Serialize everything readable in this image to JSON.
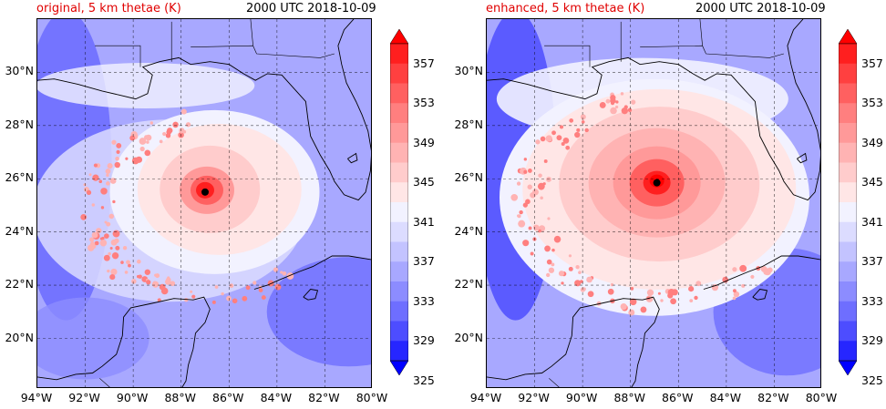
{
  "panels": [
    {
      "title": "original, 5 km thetae (K)",
      "time": "2000 UTC 2018-10-09",
      "center_marker": {
        "lon": -87.0,
        "lat": 25.5
      }
    },
    {
      "title": "enhanced, 5 km thetae (K)",
      "time": "2000 UTC 2018-10-09",
      "center_marker": {
        "lon": -86.9,
        "lat": 25.85
      }
    }
  ],
  "lat_ticks": [
    "30°N",
    "28°N",
    "26°N",
    "24°N",
    "22°N",
    "20°N"
  ],
  "lon_ticks": [
    "94°W",
    "92°W",
    "90°W",
    "88°W",
    "86°W",
    "84°W",
    "82°W",
    "80°W"
  ],
  "colorbar": {
    "ticks": [
      "357",
      "353",
      "349",
      "345",
      "341",
      "337",
      "333",
      "329",
      "325"
    ],
    "levels": [
      325,
      327,
      329,
      331,
      333,
      335,
      337,
      339,
      341,
      343,
      345,
      347,
      349,
      351,
      353,
      355,
      357,
      359
    ],
    "colors": [
      "#0000ff",
      "#2626ff",
      "#4d4dff",
      "#6e6eff",
      "#8c8cff",
      "#a8a8ff",
      "#c3c3ff",
      "#dcdcff",
      "#f2f2ff",
      "#ffe6e6",
      "#ffcccc",
      "#ffb3b3",
      "#ff9999",
      "#ff7f7f",
      "#ff6060",
      "#ff4040",
      "#ff1f1f",
      "#ff0000"
    ]
  },
  "extent": {
    "lon": [
      -94,
      -80
    ],
    "lat": [
      18.1,
      32
    ]
  }
}
